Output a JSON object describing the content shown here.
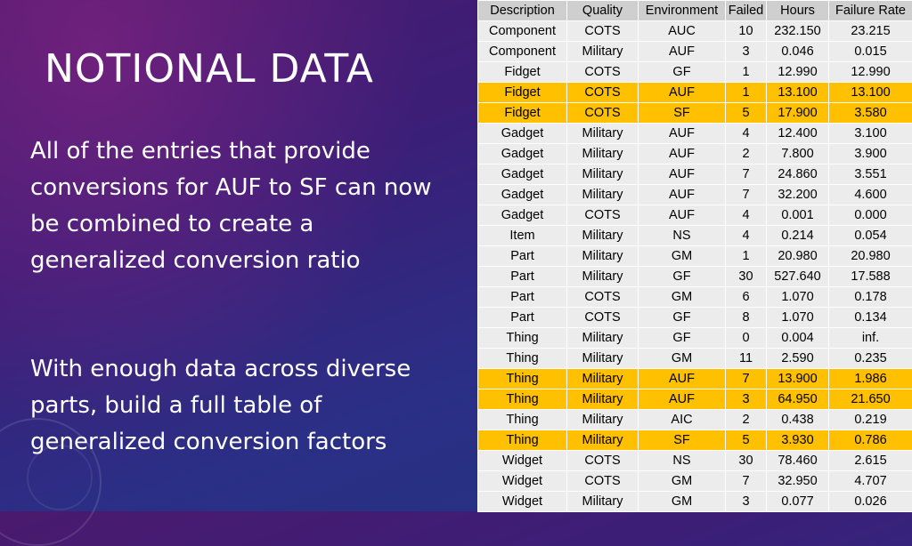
{
  "slide": {
    "title": "NOTIONAL DATA",
    "paragraph1": "All of the entries that provide conversions for AUF to SF can now be combined to create a generalized conversion ratio",
    "paragraph2": "With enough data across diverse parts, build a full table of generalized conversion factors"
  },
  "colors": {
    "highlight": "#ffc000",
    "header_bg": "#cfcfcf",
    "cell_bg": "#ececec"
  },
  "table": {
    "headers": [
      "Description",
      "Quality",
      "Environment",
      "Failed",
      "Hours",
      "Failure Rate"
    ],
    "rows": [
      {
        "description": "Component",
        "quality": "COTS",
        "environment": "AUC",
        "failed": "10",
        "hours": "232.150",
        "failure_rate": "23.215",
        "highlighted": false
      },
      {
        "description": "Component",
        "quality": "Military",
        "environment": "AUF",
        "failed": "3",
        "hours": "0.046",
        "failure_rate": "0.015",
        "highlighted": false
      },
      {
        "description": "Fidget",
        "quality": "COTS",
        "environment": "GF",
        "failed": "1",
        "hours": "12.990",
        "failure_rate": "12.990",
        "highlighted": false
      },
      {
        "description": "Fidget",
        "quality": "COTS",
        "environment": "AUF",
        "failed": "1",
        "hours": "13.100",
        "failure_rate": "13.100",
        "highlighted": true
      },
      {
        "description": "Fidget",
        "quality": "COTS",
        "environment": "SF",
        "failed": "5",
        "hours": "17.900",
        "failure_rate": "3.580",
        "highlighted": true
      },
      {
        "description": "Gadget",
        "quality": "Military",
        "environment": "AUF",
        "failed": "4",
        "hours": "12.400",
        "failure_rate": "3.100",
        "highlighted": false
      },
      {
        "description": "Gadget",
        "quality": "Military",
        "environment": "AUF",
        "failed": "2",
        "hours": "7.800",
        "failure_rate": "3.900",
        "highlighted": false
      },
      {
        "description": "Gadget",
        "quality": "Military",
        "environment": "AUF",
        "failed": "7",
        "hours": "24.860",
        "failure_rate": "3.551",
        "highlighted": false
      },
      {
        "description": "Gadget",
        "quality": "Military",
        "environment": "AUF",
        "failed": "7",
        "hours": "32.200",
        "failure_rate": "4.600",
        "highlighted": false
      },
      {
        "description": "Gadget",
        "quality": "COTS",
        "environment": "AUF",
        "failed": "4",
        "hours": "0.001",
        "failure_rate": "0.000",
        "highlighted": false
      },
      {
        "description": "Item",
        "quality": "Military",
        "environment": "NS",
        "failed": "4",
        "hours": "0.214",
        "failure_rate": "0.054",
        "highlighted": false
      },
      {
        "description": "Part",
        "quality": "Military",
        "environment": "GM",
        "failed": "1",
        "hours": "20.980",
        "failure_rate": "20.980",
        "highlighted": false
      },
      {
        "description": "Part",
        "quality": "Military",
        "environment": "GF",
        "failed": "30",
        "hours": "527.640",
        "failure_rate": "17.588",
        "highlighted": false
      },
      {
        "description": "Part",
        "quality": "COTS",
        "environment": "GM",
        "failed": "6",
        "hours": "1.070",
        "failure_rate": "0.178",
        "highlighted": false
      },
      {
        "description": "Part",
        "quality": "COTS",
        "environment": "GF",
        "failed": "8",
        "hours": "1.070",
        "failure_rate": "0.134",
        "highlighted": false
      },
      {
        "description": "Thing",
        "quality": "Military",
        "environment": "GF",
        "failed": "0",
        "hours": "0.004",
        "failure_rate": "inf.",
        "highlighted": false
      },
      {
        "description": "Thing",
        "quality": "Military",
        "environment": "GM",
        "failed": "11",
        "hours": "2.590",
        "failure_rate": "0.235",
        "highlighted": false
      },
      {
        "description": "Thing",
        "quality": "Military",
        "environment": "AUF",
        "failed": "7",
        "hours": "13.900",
        "failure_rate": "1.986",
        "highlighted": true
      },
      {
        "description": "Thing",
        "quality": "Military",
        "environment": "AUF",
        "failed": "3",
        "hours": "64.950",
        "failure_rate": "21.650",
        "highlighted": true
      },
      {
        "description": "Thing",
        "quality": "Military",
        "environment": "AIC",
        "failed": "2",
        "hours": "0.438",
        "failure_rate": "0.219",
        "highlighted": false
      },
      {
        "description": "Thing",
        "quality": "Military",
        "environment": "SF",
        "failed": "5",
        "hours": "3.930",
        "failure_rate": "0.786",
        "highlighted": true
      },
      {
        "description": "Widget",
        "quality": "COTS",
        "environment": "NS",
        "failed": "30",
        "hours": "78.460",
        "failure_rate": "2.615",
        "highlighted": false
      },
      {
        "description": "Widget",
        "quality": "COTS",
        "environment": "GM",
        "failed": "7",
        "hours": "32.950",
        "failure_rate": "4.707",
        "highlighted": false
      },
      {
        "description": "Widget",
        "quality": "Military",
        "environment": "GM",
        "failed": "3",
        "hours": "0.077",
        "failure_rate": "0.026",
        "highlighted": false
      }
    ]
  }
}
